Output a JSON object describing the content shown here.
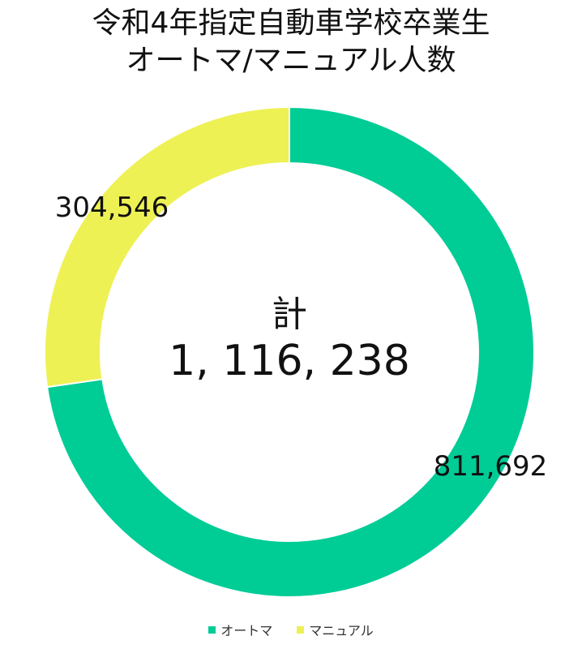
{
  "chart_data": {
    "type": "pie",
    "variant": "donut",
    "title_line1": "令和4年指定自動車学校卒業生",
    "title_line2": "オートマ/マニュアル人数",
    "center_label": "計",
    "center_value": "1, 116, 238",
    "slices": [
      {
        "name": "オートマ",
        "value": 811692,
        "label": "811,692",
        "color": "#00CC96"
      },
      {
        "name": "マニュアル",
        "value": 304546,
        "label": "304,546",
        "color": "#EEF154"
      }
    ],
    "legend_position": "bottom"
  }
}
